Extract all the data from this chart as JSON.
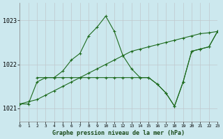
{
  "title": "Graphe pression niveau de la mer (hPa)",
  "background_color": "#cce8ee",
  "grid_major_color": "#b0b0b0",
  "grid_minor_color": "#d0e8ee",
  "line_color": "#1e6b1e",
  "xlim": [
    0,
    23
  ],
  "ylim": [
    1020.7,
    1023.4
  ],
  "yticks": [
    1021,
    1022,
    1023
  ],
  "xticks": [
    0,
    1,
    2,
    3,
    4,
    5,
    6,
    7,
    8,
    9,
    10,
    11,
    12,
    13,
    14,
    15,
    16,
    17,
    18,
    19,
    20,
    21,
    22,
    23
  ],
  "series1_x": [
    0,
    1,
    2,
    3,
    4,
    5,
    6,
    7,
    8,
    9,
    10,
    11,
    12,
    13,
    14,
    15,
    16,
    17,
    18,
    19,
    20,
    21,
    22,
    23
  ],
  "series1_y": [
    1021.1,
    1021.15,
    1021.2,
    1021.3,
    1021.4,
    1021.5,
    1021.6,
    1021.7,
    1021.8,
    1021.9,
    1022.0,
    1022.1,
    1022.2,
    1022.3,
    1022.35,
    1022.4,
    1022.45,
    1022.5,
    1022.55,
    1022.6,
    1022.65,
    1022.7,
    1022.72,
    1022.75
  ],
  "series2_x": [
    0,
    1,
    2,
    3,
    4,
    5,
    6,
    7,
    8,
    9,
    10,
    11,
    12,
    13,
    14,
    15,
    16,
    17,
    18,
    19,
    20,
    21,
    22,
    23
  ],
  "series2_y": [
    1021.1,
    1021.1,
    1021.6,
    1021.7,
    1021.7,
    1021.85,
    1022.1,
    1022.25,
    1022.65,
    1022.85,
    1023.1,
    1022.75,
    1022.2,
    1021.9,
    1021.7,
    1021.7,
    1021.55,
    1021.35,
    1021.05,
    1021.6,
    1022.3,
    1022.35,
    1022.4,
    1022.75
  ],
  "series3_x": [
    2,
    3,
    4,
    5,
    6,
    7,
    8,
    9,
    10,
    11,
    12,
    13,
    14,
    15,
    16,
    17,
    18,
    19,
    20,
    21,
    22,
    23
  ],
  "series3_y": [
    1021.7,
    1021.7,
    1021.7,
    1021.7,
    1021.7,
    1021.7,
    1021.7,
    1021.7,
    1021.7,
    1021.7,
    1021.7,
    1021.7,
    1021.7,
    1021.7,
    1021.55,
    1021.35,
    1021.05,
    1021.6,
    1022.3,
    1022.35,
    1022.4,
    1022.75
  ],
  "figsize": [
    3.2,
    2.0
  ],
  "dpi": 100
}
